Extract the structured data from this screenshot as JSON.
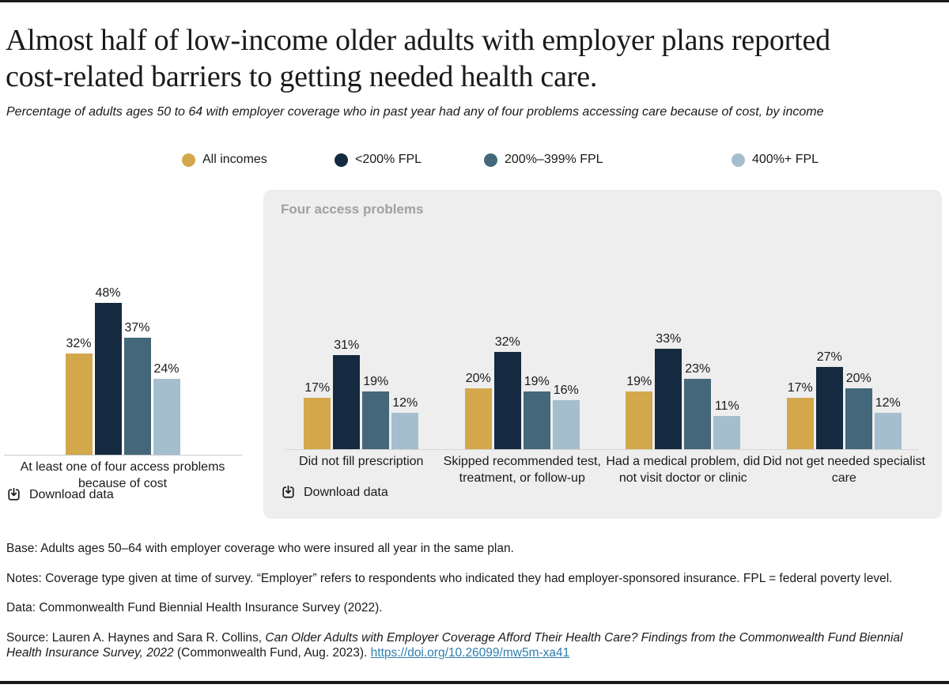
{
  "page": {
    "title_lines": [
      "Almost half of low-income older adults with employer plans reported",
      "cost-related barriers to getting needed health care."
    ],
    "subtitle": "Percentage of adults ages 50 to 64 with employer coverage who in past year had any of four problems accessing care because of cost, by income"
  },
  "legend": {
    "items": [
      {
        "label": "All incomes",
        "color": "#d3a84c"
      },
      {
        "label": "<200% FPL",
        "color": "#152940"
      },
      {
        "label": "200%–399% FPL",
        "color": "#44687a"
      },
      {
        "label": "400%+ FPL",
        "color": "#a4becd"
      }
    ]
  },
  "panel": {
    "title": "Four access problems"
  },
  "download_label": "Download data",
  "chart_data": [
    {
      "type": "bar",
      "title": "At least one of four access problems because of cost",
      "categories": [
        [
          "At least one of four access problems",
          "because of cost"
        ]
      ],
      "series": [
        {
          "name": "All incomes",
          "values": [
            32
          ]
        },
        {
          "name": "<200% FPL",
          "values": [
            48
          ]
        },
        {
          "name": "200%–399% FPL",
          "values": [
            37
          ]
        },
        {
          "name": "400%+ FPL",
          "values": [
            24
          ]
        }
      ],
      "value_suffix": "%",
      "ylim": [
        0,
        50
      ],
      "grid": false,
      "legend_position": "top"
    },
    {
      "type": "bar",
      "title": "Four access problems",
      "categories": [
        [
          "Did not fill prescription"
        ],
        [
          "Skipped recommended test,",
          "treatment, or follow-up"
        ],
        [
          "Had a medical problem, did",
          "not visit doctor or clinic"
        ],
        [
          "Did not get needed specialist",
          "care"
        ]
      ],
      "series": [
        {
          "name": "All incomes",
          "values": [
            17,
            20,
            19,
            17
          ]
        },
        {
          "name": "<200% FPL",
          "values": [
            31,
            32,
            33,
            27
          ]
        },
        {
          "name": "200%–399% FPL",
          "values": [
            19,
            19,
            23,
            20
          ]
        },
        {
          "name": "400%+ FPL",
          "values": [
            12,
            16,
            11,
            12
          ]
        }
      ],
      "value_suffix": "%",
      "ylim": [
        0,
        35
      ],
      "grid": false,
      "legend_position": "top"
    }
  ],
  "notes": {
    "base": "Base: Adults ages 50–64 with employer coverage who were insured all year in the same plan.",
    "notes": "Notes: Coverage type given at time of survey. “Employer” refers to respondents who indicated they had employer-sponsored insurance. FPL = federal poverty level.",
    "data": "Data: Commonwealth Fund Biennial Health Insurance Survey (2022).",
    "source_prefix": "Source: Lauren A. Haynes and Sara R. Collins, ",
    "source_italic": "Can Older Adults with Employer Coverage Afford Their Health Care? Findings from the Commonwealth Fund Biennial Health Insurance Survey, 2022",
    "source_suffix": " (Commonwealth Fund, Aug. 2023). ",
    "source_link": "https://doi.org/10.26099/mw5m-xa41"
  }
}
